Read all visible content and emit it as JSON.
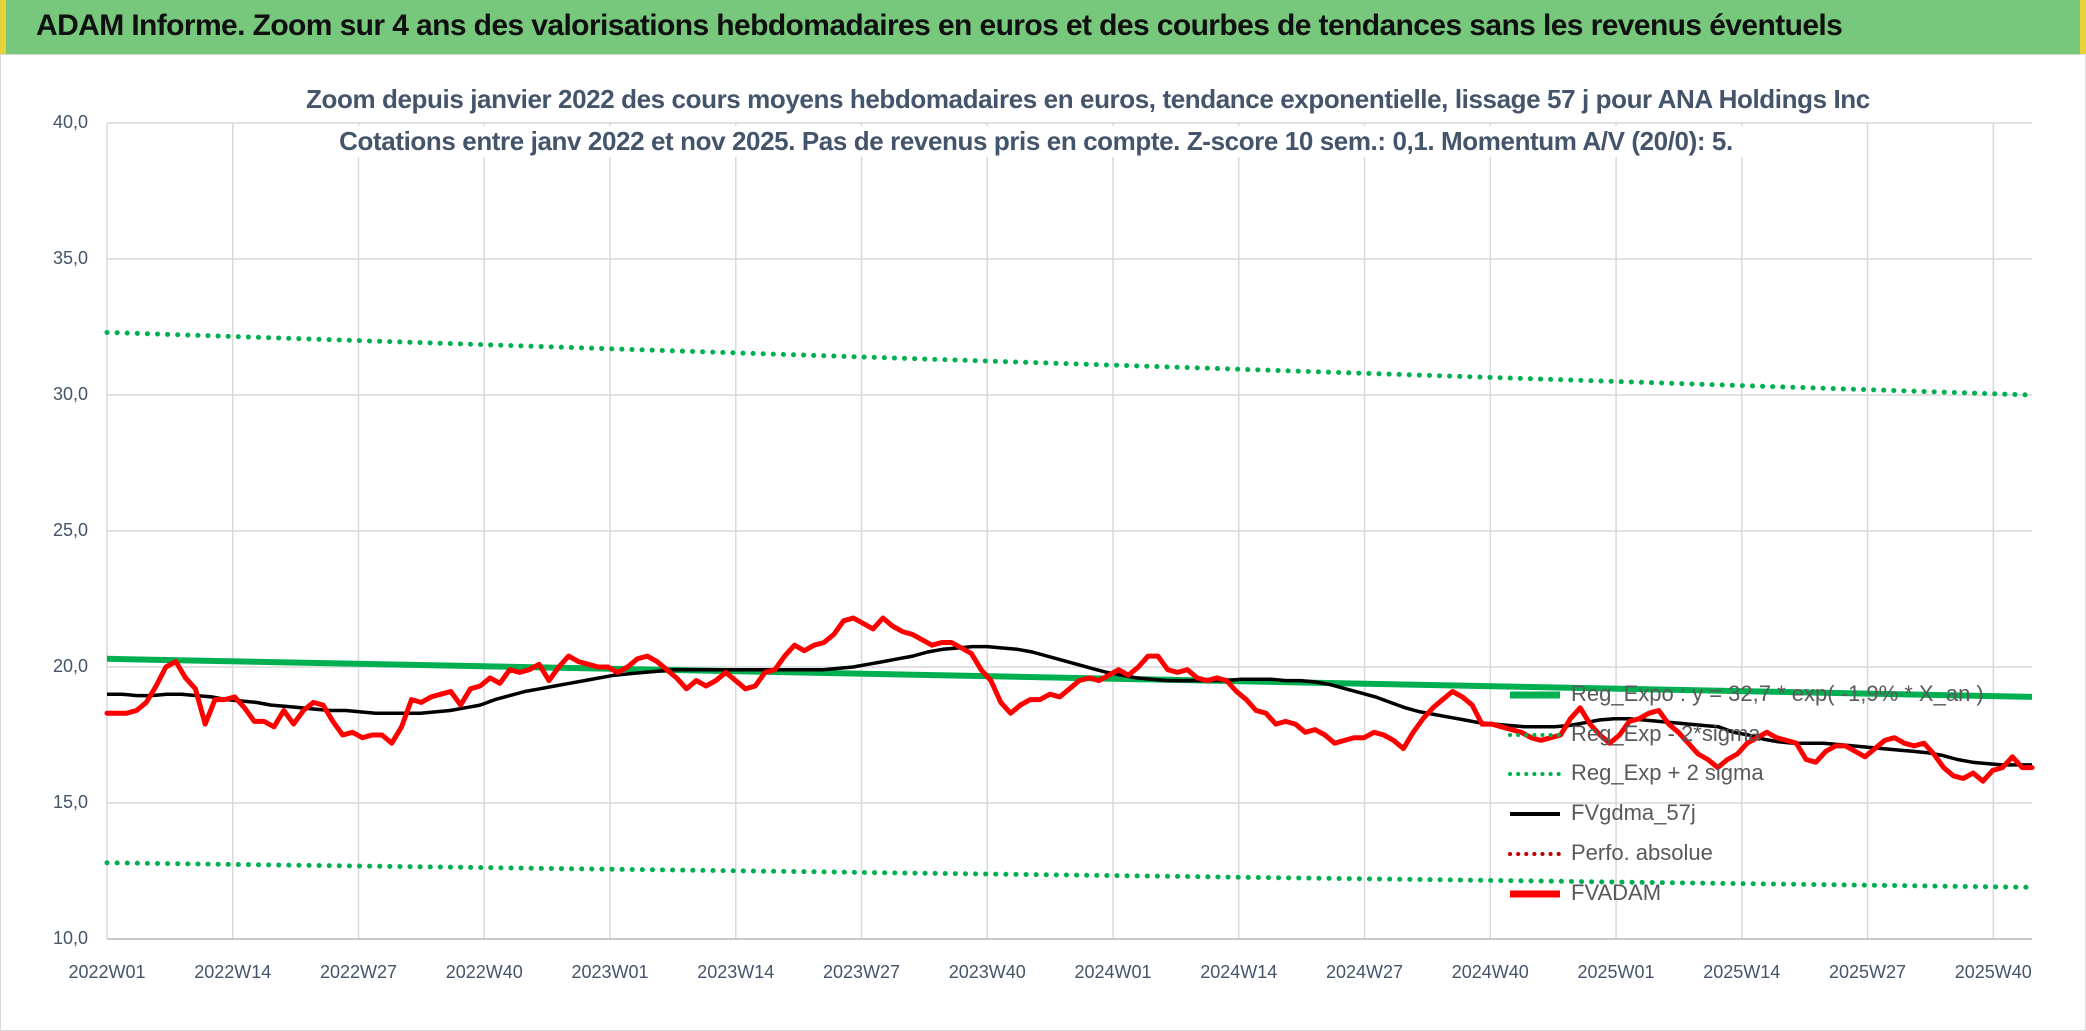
{
  "header": {
    "title": "ADAM Informe. Zoom sur 4 ans des valorisations hebdomadaires en euros et des courbes de tendances sans les revenus éventuels"
  },
  "colors": {
    "banner": "#77c77d",
    "trend_green": "#00b050",
    "price_red": "#ff0000",
    "gdma_black": "#000000",
    "perfo_red": "#c00000",
    "grid": "#d9d9d9"
  },
  "chart_data": {
    "type": "line",
    "title": "Zoom depuis janvier 2022  des cours moyens hebdomadaires en euros, tendance exponentielle, lissage 57 j pour ANA Holdings Inc",
    "subtitle": "Cotations entre janv 2022 et nov 2025. Pas de revenus pris en compte. Z-score 10 sem.: 0,1. Momentum A/V (20/0): 5.",
    "ylim": [
      10,
      40
    ],
    "yticks": [
      "10,0",
      "15,0",
      "20,0",
      "25,0",
      "30,0",
      "35,0",
      "40,0"
    ],
    "x_count": 200,
    "x_tick_labels": [
      "2022W01",
      "2022W14",
      "2022W27",
      "2022W40",
      "2023W01",
      "2023W14",
      "2023W27",
      "2023W40",
      "2024W01",
      "2024W14",
      "2024W27",
      "2024W40",
      "2025W01",
      "2025W14",
      "2025W27",
      "2025W40"
    ],
    "legend_position": "bottom-right",
    "series": [
      {
        "name": "Reg_Expo : y = 32,7 * exp( -1,9% * X_an )",
        "style": "solid-thick",
        "color": "#00b050",
        "values": [
          20.3,
          18.9
        ]
      },
      {
        "name": "Reg_Exp - 2*sigma",
        "style": "dotted",
        "color": "#00b050",
        "values": [
          12.8,
          11.9
        ]
      },
      {
        "name": "Reg_Exp + 2 sigma",
        "style": "dotted",
        "color": "#00b050",
        "values": [
          32.3,
          30.0
        ]
      },
      {
        "name": "FVgdma_57j",
        "style": "solid",
        "color": "#000000",
        "values": [
          19.0,
          19.0,
          18.95,
          18.95,
          19.0,
          19.0,
          18.95,
          18.9,
          18.8,
          18.75,
          18.7,
          18.6,
          18.55,
          18.5,
          18.45,
          18.4,
          18.4,
          18.35,
          18.3,
          18.3,
          18.3,
          18.3,
          18.35,
          18.4,
          18.5,
          18.6,
          18.8,
          18.95,
          19.1,
          19.2,
          19.3,
          19.4,
          19.5,
          19.6,
          19.7,
          19.75,
          19.8,
          19.85,
          19.9,
          19.9,
          19.9,
          19.9,
          19.9,
          19.9,
          19.9,
          19.9,
          19.9,
          19.9,
          19.9,
          19.95,
          20.0,
          20.1,
          20.2,
          20.3,
          20.4,
          20.55,
          20.65,
          20.7,
          20.75,
          20.75,
          20.7,
          20.65,
          20.55,
          20.4,
          20.25,
          20.1,
          19.95,
          19.8,
          19.7,
          19.6,
          19.55,
          19.5,
          19.5,
          19.5,
          19.5,
          19.5,
          19.55,
          19.55,
          19.55,
          19.5,
          19.5,
          19.45,
          19.35,
          19.2,
          19.05,
          18.9,
          18.7,
          18.5,
          18.35,
          18.25,
          18.15,
          18.05,
          17.95,
          17.9,
          17.85,
          17.8,
          17.8,
          17.8,
          17.85,
          17.95,
          18.05,
          18.1,
          18.1,
          18.05,
          18.0,
          17.95,
          17.9,
          17.85,
          17.8,
          17.6,
          17.5,
          17.35,
          17.25,
          17.2,
          17.2,
          17.2,
          17.15,
          17.1,
          17.05,
          17.0,
          16.95,
          16.9,
          16.85,
          16.75,
          16.6,
          16.5,
          16.45,
          16.4,
          16.4,
          16.4
        ],
        "sampled_every": 1
      },
      {
        "name": "Perfo. absolue",
        "style": "dotted",
        "color": "#c00000",
        "values": []
      },
      {
        "name": "FVADAM",
        "style": "solid-thick",
        "color": "#ff0000",
        "values": [
          18.3,
          18.3,
          18.3,
          18.4,
          18.7,
          19.3,
          20.0,
          20.2,
          19.6,
          19.2,
          17.9,
          18.8,
          18.8,
          18.9,
          18.5,
          18.0,
          18.0,
          17.8,
          18.4,
          17.9,
          18.4,
          18.7,
          18.6,
          18.0,
          17.5,
          17.6,
          17.4,
          17.5,
          17.5,
          17.2,
          17.8,
          18.8,
          18.7,
          18.9,
          19.0,
          19.1,
          18.6,
          19.2,
          19.3,
          19.6,
          19.4,
          19.9,
          19.8,
          19.9,
          20.1,
          19.5,
          20.0,
          20.4,
          20.2,
          20.1,
          20.0,
          20.0,
          19.8,
          20.0,
          20.3,
          20.4,
          20.2,
          19.9,
          19.6,
          19.2,
          19.5,
          19.3,
          19.5,
          19.8,
          19.5,
          19.2,
          19.3,
          19.8,
          19.9,
          20.4,
          20.8,
          20.6,
          20.8,
          20.9,
          21.2,
          21.7,
          21.8,
          21.6,
          21.4,
          21.8,
          21.5,
          21.3,
          21.2,
          21.0,
          20.8,
          20.9,
          20.9,
          20.7,
          20.5,
          19.9,
          19.5,
          18.7,
          18.3,
          18.6,
          18.8,
          18.8,
          19.0,
          18.9,
          19.2,
          19.5,
          19.6,
          19.5,
          19.7,
          19.9,
          19.7,
          20.0,
          20.4,
          20.4,
          19.9,
          19.8,
          19.9,
          19.6,
          19.5,
          19.6,
          19.5,
          19.1,
          18.8,
          18.4,
          18.3,
          17.9,
          18.0,
          17.9,
          17.6,
          17.7,
          17.5,
          17.2,
          17.3,
          17.4,
          17.4,
          17.6,
          17.5,
          17.3,
          17.0,
          17.6,
          18.1,
          18.5,
          18.8,
          19.1,
          18.9,
          18.6,
          17.9,
          17.9,
          17.8,
          17.7,
          17.6,
          17.4,
          17.3,
          17.4,
          17.5,
          18.1,
          18.5,
          17.9,
          17.5,
          17.2,
          17.5,
          18.0,
          18.1,
          18.3,
          18.4,
          17.9,
          17.6,
          17.2,
          16.8,
          16.6,
          16.3,
          16.6,
          16.8,
          17.2,
          17.4,
          17.6,
          17.4,
          17.3,
          17.2,
          16.6,
          16.5,
          16.9,
          17.1,
          17.1,
          16.9,
          16.7,
          17.0,
          17.3,
          17.4,
          17.2,
          17.1,
          17.2,
          16.8,
          16.3,
          16.0,
          15.9,
          16.1,
          15.8,
          16.2,
          16.3,
          16.7,
          16.3,
          16.3
        ]
      }
    ]
  }
}
